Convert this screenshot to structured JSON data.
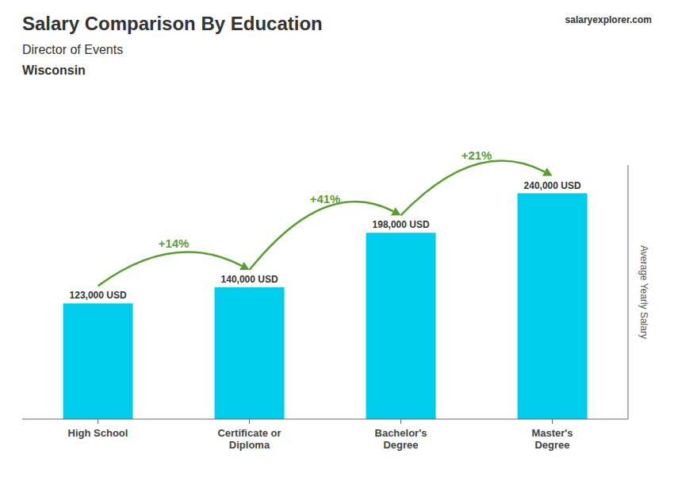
{
  "chart_data": {
    "type": "bar",
    "title": "Salary Comparison By Education",
    "subtitle": "Director of Events",
    "ylabel": "Average Yearly Salary",
    "annotations": [
      {
        "text": "Wisconsin"
      },
      {
        "text": "salaryexplorer.com"
      },
      {
        "text": "+14%",
        "from": "High School",
        "to": "Certificate or\nDiploma"
      },
      {
        "text": "+41%",
        "from": "Certificate or\nDiploma",
        "to": "Bachelor's\nDegree"
      },
      {
        "text": "+21%",
        "from": "Bachelor's\nDegree",
        "to": "Master's\nDegree"
      }
    ],
    "categories": [
      "High School",
      "Certificate or\nDiploma",
      "Bachelor's\nDegree",
      "Master's\nDegree"
    ],
    "values": [
      123000,
      140000,
      198000,
      240000
    ],
    "value_labels": [
      "123,000 USD",
      "140,000 USD",
      "198,000 USD",
      "240,000 USD"
    ],
    "data_labels": true,
    "color": "#00ccee",
    "ylim": [
      0,
      270000
    ],
    "tick_labels": "x",
    "grid": false
  }
}
